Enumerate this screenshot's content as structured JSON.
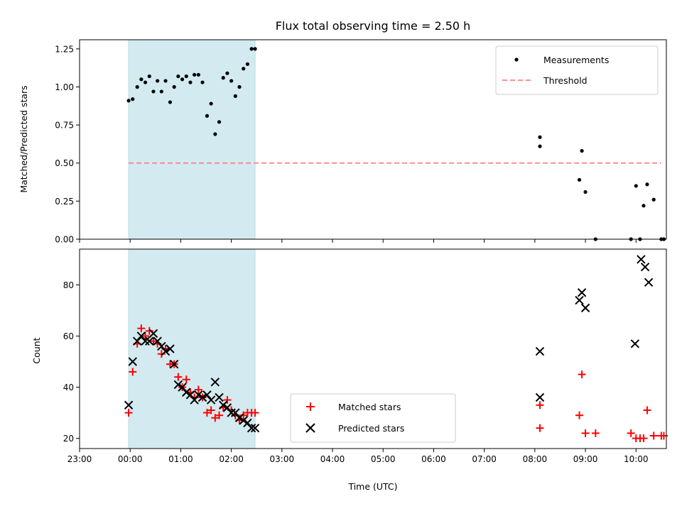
{
  "chart_data": [
    {
      "type": "scatter",
      "title": "Flux total observing time = 2.50 h",
      "ylabel": "Matched/Predicted stars",
      "xlabel": "",
      "xlim": [
        -0.5,
        11.1
      ],
      "ylim": [
        0,
        1.31
      ],
      "yticks": [
        0,
        0.25,
        0.5,
        0.75,
        1.0,
        1.25
      ],
      "ytick_labels": [
        "0.00",
        "0.25",
        "0.50",
        "0.75",
        "1.00",
        "1.25"
      ],
      "shaded_span": [
        0.47,
        2.97
      ],
      "threshold": {
        "y": 0.5,
        "x": [
          0.47,
          11.0
        ]
      },
      "legend": {
        "placement": "top-right",
        "entries": [
          "Measurements",
          "Threshold"
        ]
      },
      "series": [
        {
          "name": "Measurements",
          "x": [
            0.47,
            0.55,
            0.64,
            0.72,
            0.8,
            0.88,
            0.96,
            1.04,
            1.12,
            1.2,
            1.29,
            1.37,
            1.45,
            1.53,
            1.61,
            1.69,
            1.77,
            1.85,
            1.93,
            2.02,
            2.1,
            2.18,
            2.26,
            2.34,
            2.42,
            2.5,
            2.58,
            2.66,
            2.74,
            2.82,
            2.9,
            2.97,
            8.6,
            8.6,
            9.38,
            9.43,
            9.5,
            9.7,
            10.4,
            10.5,
            10.58,
            10.65,
            10.72,
            10.85,
            11.0,
            11.05
          ],
          "y": [
            0.91,
            0.92,
            1.0,
            1.05,
            1.03,
            1.07,
            0.97,
            1.04,
            0.97,
            1.04,
            0.9,
            1.0,
            1.07,
            1.05,
            1.07,
            1.03,
            1.08,
            1.08,
            1.03,
            0.81,
            0.89,
            0.69,
            0.77,
            1.06,
            1.09,
            1.04,
            0.94,
            1.0,
            1.12,
            1.15,
            1.25,
            1.25,
            0.67,
            0.61,
            0.39,
            0.58,
            0.31,
            0.0,
            0.0,
            0.35,
            0.0,
            0.22,
            0.36,
            0.26,
            0.0,
            0.0
          ]
        }
      ]
    },
    {
      "type": "scatter",
      "title": "",
      "ylabel": "Count",
      "xlabel": "Time (UTC)",
      "xlim": [
        -0.5,
        11.1
      ],
      "ylim": [
        16,
        94
      ],
      "yticks": [
        20,
        40,
        60,
        80
      ],
      "ytick_labels": [
        "20",
        "40",
        "60",
        "80"
      ],
      "xticks": [
        -0.5,
        0.5,
        1.5,
        2.5,
        3.5,
        4.5,
        5.5,
        6.5,
        7.5,
        8.5,
        9.5,
        10.5
      ],
      "xtick_labels": [
        "23:00",
        "00:00",
        "01:00",
        "02:00",
        "03:00",
        "04:00",
        "05:00",
        "06:00",
        "07:00",
        "08:00",
        "09:00",
        "10:00"
      ],
      "shaded_span": [
        0.47,
        2.97
      ],
      "legend": {
        "placement": "lower-center",
        "entries": [
          "Matched stars",
          "Predicted stars"
        ]
      },
      "series": [
        {
          "name": "Matched stars",
          "x": [
            0.47,
            0.55,
            0.64,
            0.72,
            0.8,
            0.88,
            0.96,
            1.04,
            1.12,
            1.2,
            1.29,
            1.37,
            1.45,
            1.53,
            1.61,
            1.69,
            1.77,
            1.85,
            1.93,
            2.02,
            2.1,
            2.18,
            2.26,
            2.34,
            2.42,
            2.5,
            2.58,
            2.66,
            2.74,
            2.82,
            2.9,
            2.97,
            8.6,
            8.6,
            9.38,
            9.43,
            9.5,
            9.7,
            10.4,
            10.5,
            10.58,
            10.65,
            10.72,
            10.85,
            11.0,
            11.05
          ],
          "y": [
            30,
            46,
            57,
            63,
            60,
            62,
            58,
            57,
            53,
            55,
            49,
            49,
            44,
            40,
            43,
            38,
            36,
            39,
            36,
            30,
            31,
            28,
            29,
            32,
            35,
            31,
            29,
            27,
            29,
            30,
            30,
            30,
            33,
            24,
            29,
            45,
            22,
            22,
            22,
            20,
            20,
            20,
            31,
            21,
            21,
            21
          ]
        },
        {
          "name": "Predicted stars",
          "x": [
            0.47,
            0.55,
            0.64,
            0.72,
            0.8,
            0.88,
            0.96,
            1.04,
            1.12,
            1.2,
            1.29,
            1.37,
            1.45,
            1.53,
            1.61,
            1.69,
            1.77,
            1.85,
            1.93,
            2.02,
            2.1,
            2.18,
            2.26,
            2.34,
            2.42,
            2.5,
            2.58,
            2.66,
            2.74,
            2.82,
            2.9,
            2.97,
            8.6,
            8.6,
            9.38,
            9.43,
            9.5,
            10.48,
            10.6,
            10.68,
            10.75
          ],
          "y": [
            33,
            50,
            58,
            60,
            58,
            58,
            61,
            58,
            56,
            54,
            55,
            49,
            41,
            40,
            38,
            37,
            35,
            37,
            36,
            37,
            35,
            42,
            36,
            33,
            32,
            30,
            30,
            28,
            27,
            26,
            24,
            24,
            54,
            36,
            74,
            77,
            71,
            57,
            90,
            87,
            81
          ]
        }
      ]
    }
  ],
  "colors": {
    "measurement": "#000000",
    "threshold": "#ff7f7f",
    "matched": "#ff0000",
    "predicted": "#000000",
    "shade": "#d2eaf0"
  }
}
